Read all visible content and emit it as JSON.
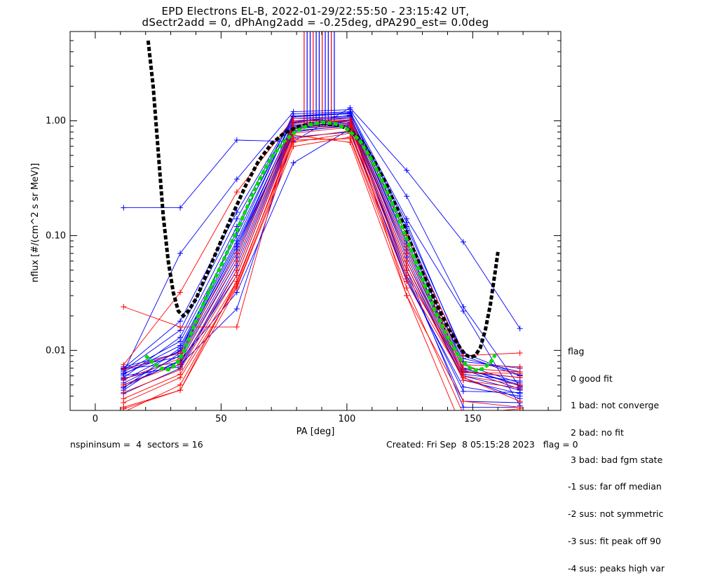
{
  "title_line1": "EPD Electrons EL-B, 2022-01-29/22:55:50 - 23:15:42 UT,",
  "title_line2": "dSectr2add = 0, dPhAng2add = -0.25deg, dPA290_est=   0.0deg",
  "footer_left": "nspininsum =  4  sectors = 16",
  "footer_right": "Created: Fri Sep  8 05:15:28 2023   flag = 0",
  "legend": {
    "title": "flag",
    "items": [
      " 0 good fit",
      " 1 bad: not converge",
      " 2 bad: no fit",
      " 3 bad: bad fgm state",
      "-1 sus: far off median",
      "-2 sus: not symmetric",
      "-3 sus: fit peak off 90",
      "-4 sus: peaks high var"
    ]
  },
  "chart_data": {
    "type": "line",
    "xlabel": "PA [deg]",
    "ylabel": "nflux [#/(cm^2 s sr MeV)]",
    "xlim": [
      -10,
      185
    ],
    "ylim": [
      0.003,
      6.0
    ],
    "yscale": "log",
    "x_ticks": [
      0,
      50,
      100,
      150
    ],
    "y_ticks": [
      0.01,
      0.1,
      1.0
    ],
    "y_tick_labels": [
      "0.01",
      "0.10",
      "1.00"
    ],
    "colors": {
      "blue": "#0000ff",
      "red": "#ff0000",
      "black_fit": "#000000",
      "green_fit": "#00dd00"
    },
    "x": [
      11.25,
      33.75,
      56.25,
      78.75,
      101.25,
      123.75,
      146.25,
      168.75
    ],
    "series": [
      {
        "color": "blue",
        "values": [
          0.175,
          0.175,
          0.68,
          0.66,
          1.3,
          0.37,
          0.088,
          0.0155
        ]
      },
      {
        "color": "blue",
        "values": [
          0.0065,
          0.07,
          0.31,
          1.2,
          1.25,
          0.22,
          0.024,
          0.0048
        ]
      },
      {
        "color": "blue",
        "values": [
          0.007,
          0.018,
          0.16,
          1.1,
          1.15,
          0.13,
          0.009,
          0.006
        ]
      },
      {
        "color": "blue",
        "values": [
          0.0065,
          0.012,
          0.1,
          1.05,
          1.1,
          0.09,
          0.008,
          0.007
        ]
      },
      {
        "color": "blue",
        "values": [
          0.0055,
          0.01,
          0.08,
          0.98,
          1.05,
          0.08,
          0.007,
          0.005
        ]
      },
      {
        "color": "blue",
        "values": [
          0.0072,
          0.0095,
          0.07,
          0.92,
          1.0,
          0.07,
          0.0065,
          0.0058
        ]
      },
      {
        "color": "blue",
        "values": [
          0.005,
          0.008,
          0.06,
          0.88,
          0.95,
          0.06,
          0.006,
          0.0045
        ]
      },
      {
        "color": "blue",
        "values": [
          0.0042,
          0.007,
          0.05,
          0.82,
          0.9,
          0.055,
          0.0055,
          0.0042
        ]
      },
      {
        "color": "blue",
        "values": [
          0.0062,
          0.011,
          0.09,
          1.1,
          1.18,
          0.1,
          0.0075,
          0.0052
        ]
      },
      {
        "color": "blue",
        "values": [
          0.0058,
          0.013,
          0.12,
          1.0,
          1.08,
          0.11,
          0.0085,
          0.0065
        ]
      },
      {
        "color": "blue",
        "values": [
          0.007,
          0.0088,
          0.065,
          0.95,
          1.02,
          0.065,
          0.0062,
          0.0054
        ]
      },
      {
        "color": "blue",
        "values": [
          0.0052,
          0.009,
          0.075,
          0.9,
          0.97,
          0.075,
          0.007,
          0.0049
        ]
      },
      {
        "color": "blue",
        "values": [
          0.0047,
          0.0105,
          0.085,
          0.96,
          1.12,
          0.085,
          0.0068,
          0.0046
        ]
      },
      {
        "color": "blue",
        "values": [
          0.006,
          0.0072,
          0.055,
          0.86,
          0.93,
          0.05,
          0.0058,
          0.0038
        ]
      },
      {
        "color": "blue",
        "values": [
          0.0067,
          0.015,
          0.14,
          1.08,
          1.16,
          0.12,
          0.0095,
          0.0061
        ]
      },
      {
        "color": "blue",
        "values": [
          0.0045,
          0.0095,
          0.08,
          0.85,
          1.0,
          0.045,
          0.0036,
          0.0035
        ]
      },
      {
        "color": "blue",
        "values": [
          0.0069,
          0.0078,
          0.045,
          0.8,
          0.92,
          0.05,
          0.0032,
          0.0032
        ]
      },
      {
        "color": "blue",
        "values": [
          0.0048,
          0.0082,
          0.032,
          0.43,
          0.85,
          0.04,
          0.0048,
          0.004
        ]
      },
      {
        "color": "blue",
        "values": [
          0.0057,
          0.0075,
          0.023,
          0.72,
          0.8,
          0.042,
          0.0044,
          0.0043
        ]
      },
      {
        "color": "blue",
        "values": [
          0.0063,
          0.0098,
          0.11,
          1.15,
          1.2,
          0.14,
          0.022,
          0.0033
        ]
      },
      {
        "color": "red",
        "values": [
          0.024,
          0.016,
          0.016,
          1.0,
          1.0,
          0.03,
          0.0036,
          0.0032
        ]
      },
      {
        "color": "red",
        "values": [
          0.0075,
          0.032,
          0.24,
          1.05,
          1.05,
          0.1,
          0.009,
          0.0095
        ]
      },
      {
        "color": "red",
        "values": [
          0.0068,
          0.0095,
          0.07,
          0.95,
          1.0,
          0.08,
          0.0075,
          0.0072
        ]
      },
      {
        "color": "red",
        "values": [
          0.0056,
          0.0085,
          0.06,
          0.9,
          0.95,
          0.07,
          0.007,
          0.0065
        ]
      },
      {
        "color": "red",
        "values": [
          0.005,
          0.0076,
          0.05,
          0.85,
          0.92,
          0.06,
          0.0066,
          0.0058
        ]
      },
      {
        "color": "red",
        "values": [
          0.0043,
          0.0068,
          0.045,
          0.78,
          0.88,
          0.055,
          0.006,
          0.005
        ]
      },
      {
        "color": "red",
        "values": [
          0.0038,
          0.0062,
          0.04,
          0.7,
          0.82,
          0.05,
          0.0055,
          0.0047
        ]
      },
      {
        "color": "red",
        "values": [
          0.0035,
          0.0058,
          0.036,
          0.65,
          0.78,
          0.045,
          0.0064,
          0.0063
        ]
      },
      {
        "color": "red",
        "values": [
          0.0031,
          0.0045,
          0.035,
          0.6,
          0.72,
          0.04,
          0.0058,
          0.0036
        ]
      },
      {
        "color": "red",
        "values": [
          0.0032,
          0.0045,
          0.04,
          0.68,
          0.7,
          0.035,
          0.0028,
          0.0031
        ]
      },
      {
        "color": "red",
        "values": [
          0.0029,
          0.005,
          0.038,
          0.75,
          0.65,
          0.03,
          0.002,
          0.003
        ]
      }
    ],
    "central_bars_x": [
      83.0,
      84.2,
      85.4,
      86.6,
      87.8,
      89.0,
      90.2,
      91.4,
      92.6,
      93.8,
      95.0
    ],
    "black_fit": {
      "x": [
        21,
        23,
        25,
        27,
        29,
        31,
        33,
        35,
        37,
        40,
        45,
        50,
        55,
        60,
        65,
        70,
        75,
        80,
        85,
        90,
        95,
        100,
        105,
        110,
        115,
        120,
        125,
        130,
        135,
        140,
        145,
        147,
        149,
        151,
        153,
        155,
        157,
        159,
        160
      ],
      "values": [
        5.0,
        2.0,
        0.55,
        0.15,
        0.06,
        0.032,
        0.022,
        0.02,
        0.022,
        0.028,
        0.05,
        0.09,
        0.16,
        0.28,
        0.45,
        0.63,
        0.78,
        0.88,
        0.93,
        0.95,
        0.93,
        0.86,
        0.7,
        0.48,
        0.3,
        0.17,
        0.09,
        0.048,
        0.027,
        0.016,
        0.0105,
        0.0092,
        0.0087,
        0.009,
        0.0105,
        0.015,
        0.025,
        0.05,
        0.072
      ]
    },
    "green_fit": {
      "x": [
        20,
        23,
        26,
        29,
        32,
        35,
        40,
        45,
        50,
        55,
        60,
        65,
        70,
        75,
        80,
        85,
        90,
        95,
        100,
        105,
        110,
        115,
        120,
        125,
        130,
        135,
        140,
        145,
        148,
        151,
        154,
        157,
        159
      ],
      "values": [
        0.009,
        0.0078,
        0.007,
        0.0068,
        0.0075,
        0.0095,
        0.018,
        0.032,
        0.055,
        0.095,
        0.17,
        0.3,
        0.48,
        0.66,
        0.82,
        0.92,
        0.97,
        0.95,
        0.85,
        0.68,
        0.45,
        0.27,
        0.15,
        0.08,
        0.042,
        0.022,
        0.013,
        0.0085,
        0.0072,
        0.0067,
        0.0069,
        0.0078,
        0.0092
      ]
    }
  }
}
